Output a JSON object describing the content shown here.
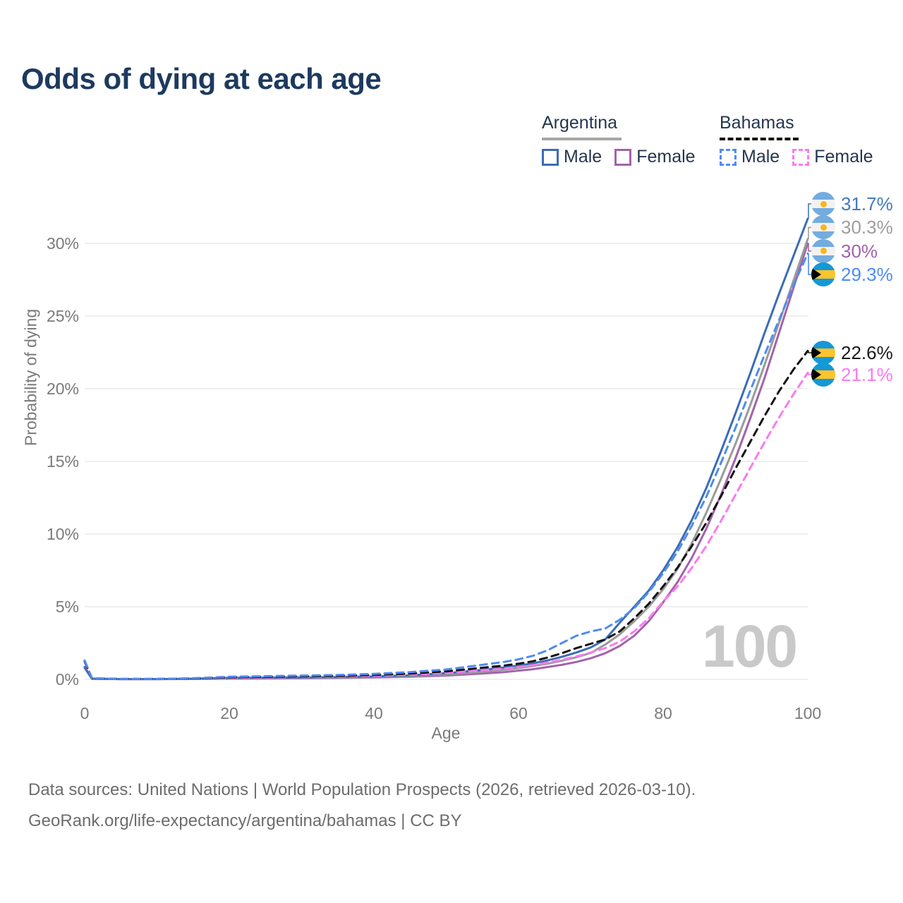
{
  "title": "Odds of dying at each age",
  "legend": {
    "groups": [
      {
        "country": "Argentina",
        "line_style": "solid",
        "line_color": "#a6a6a6",
        "items": [
          {
            "label": "Male",
            "color": "#3b6cb7",
            "style": "solid"
          },
          {
            "label": "Female",
            "color": "#a263ab",
            "style": "solid"
          }
        ]
      },
      {
        "country": "Bahamas",
        "line_style": "dashed",
        "line_color": "#141414",
        "items": [
          {
            "label": "Male",
            "color": "#4f8bf0",
            "style": "dashed"
          },
          {
            "label": "Female",
            "color": "#fb7af0",
            "style": "dashed"
          }
        ]
      }
    ]
  },
  "chart_data": {
    "type": "line",
    "title": "Odds of dying at each age",
    "xlabel": "Age",
    "ylabel": "Probability of dying",
    "xlim": [
      0,
      100
    ],
    "ylim": [
      0,
      33
    ],
    "grid": "horizontal",
    "legend_position": "top-right",
    "x_ticks": [
      0,
      20,
      40,
      60,
      80,
      100
    ],
    "y_ticks": [
      {
        "value": 0,
        "label": "0%"
      },
      {
        "value": 5,
        "label": "5%"
      },
      {
        "value": 10,
        "label": "10%"
      },
      {
        "value": 15,
        "label": "15%"
      },
      {
        "value": 20,
        "label": "20%"
      },
      {
        "value": 25,
        "label": "25%"
      },
      {
        "value": 30,
        "label": "30%"
      }
    ],
    "x": [
      0,
      1,
      5,
      10,
      15,
      20,
      25,
      30,
      35,
      40,
      45,
      50,
      55,
      58,
      60,
      62,
      64,
      66,
      68,
      70,
      72,
      74,
      76,
      78,
      80,
      82,
      84,
      86,
      88,
      90,
      92,
      94,
      96,
      98,
      100
    ],
    "series": [
      {
        "name": "argentina_female",
        "country": "Argentina",
        "sex": "Female",
        "line_style": "solid",
        "color": "#a263ab",
        "end_label": "30%",
        "values": [
          0.78,
          0.04,
          0.02,
          0.02,
          0.03,
          0.05,
          0.06,
          0.08,
          0.1,
          0.13,
          0.18,
          0.26,
          0.4,
          0.5,
          0.6,
          0.7,
          0.85,
          1.0,
          1.2,
          1.45,
          1.8,
          2.3,
          3.0,
          4.0,
          5.3,
          6.7,
          8.4,
          10.4,
          12.7,
          15.2,
          17.9,
          20.7,
          23.8,
          26.9,
          30.0
        ]
      },
      {
        "name": "argentina_both",
        "country": "Argentina",
        "sex": "Both",
        "line_style": "solid",
        "color": "#9a9a9a",
        "end_label": "30.3%",
        "values": [
          0.82,
          0.05,
          0.02,
          0.02,
          0.04,
          0.08,
          0.09,
          0.1,
          0.13,
          0.16,
          0.22,
          0.34,
          0.52,
          0.66,
          0.78,
          0.92,
          1.08,
          1.28,
          1.52,
          1.82,
          2.4,
          3.1,
          4.0,
          5.0,
          6.2,
          7.6,
          9.4,
          11.5,
          13.8,
          16.2,
          18.8,
          21.6,
          24.5,
          27.4,
          30.3
        ]
      },
      {
        "name": "argentina_male",
        "country": "Argentina",
        "sex": "Male",
        "line_style": "solid",
        "color": "#3b6cb7",
        "end_label": "31.7%",
        "values": [
          0.85,
          0.05,
          0.02,
          0.02,
          0.05,
          0.1,
          0.12,
          0.13,
          0.16,
          0.2,
          0.28,
          0.42,
          0.65,
          0.82,
          0.95,
          1.1,
          1.3,
          1.55,
          1.85,
          2.2,
          2.75,
          3.9,
          5.0,
          6.1,
          7.5,
          9.1,
          11.0,
          13.2,
          15.7,
          18.3,
          21.0,
          23.8,
          26.5,
          29.1,
          31.7
        ]
      },
      {
        "name": "bahamas_female",
        "country": "Bahamas",
        "sex": "Female",
        "line_style": "dashed",
        "color": "#fb7af0",
        "end_label": "21.1%",
        "values": [
          1.2,
          0.06,
          0.02,
          0.02,
          0.05,
          0.1,
          0.13,
          0.16,
          0.19,
          0.24,
          0.32,
          0.44,
          0.62,
          0.74,
          0.85,
          0.98,
          1.15,
          1.35,
          1.58,
          1.85,
          2.15,
          2.6,
          3.3,
          4.2,
          5.35,
          6.4,
          7.7,
          9.2,
          10.9,
          12.7,
          14.5,
          16.3,
          18.0,
          19.6,
          21.1
        ]
      },
      {
        "name": "bahamas_both",
        "country": "Bahamas",
        "sex": "Both",
        "line_style": "dashed",
        "color": "#141414",
        "end_label": "22.6%",
        "values": [
          1.25,
          0.07,
          0.03,
          0.03,
          0.06,
          0.14,
          0.17,
          0.2,
          0.24,
          0.3,
          0.4,
          0.55,
          0.8,
          0.95,
          1.08,
          1.25,
          1.5,
          1.8,
          2.15,
          2.45,
          2.75,
          3.3,
          4.2,
          5.2,
          6.4,
          7.7,
          9.2,
          10.8,
          12.6,
          14.5,
          16.3,
          18.1,
          19.8,
          21.3,
          22.6
        ]
      },
      {
        "name": "bahamas_male",
        "country": "Bahamas",
        "sex": "Male",
        "line_style": "dashed",
        "color": "#4f8bf0",
        "end_label": "29.3%",
        "values": [
          1.3,
          0.08,
          0.03,
          0.03,
          0.08,
          0.18,
          0.22,
          0.26,
          0.3,
          0.38,
          0.5,
          0.68,
          1.0,
          1.2,
          1.38,
          1.62,
          2.0,
          2.5,
          3.0,
          3.3,
          3.5,
          4.1,
          4.9,
          6.0,
          7.3,
          8.8,
          10.6,
          12.6,
          14.9,
          17.3,
          19.8,
          22.3,
          24.7,
          27.1,
          29.3
        ]
      }
    ]
  },
  "end_labels": [
    {
      "series": "argentina_male",
      "text": "31.7%",
      "flag": "argentina",
      "color": "#4379bd"
    },
    {
      "series": "argentina_both",
      "text": "30.3%",
      "flag": "argentina",
      "color": "#9e9e9e"
    },
    {
      "series": "argentina_female",
      "text": "30%",
      "flag": "argentina",
      "color": "#a263ab"
    },
    {
      "series": "bahamas_male",
      "text": "29.3%",
      "flag": "bahamas",
      "color": "#4c8bf5"
    },
    {
      "series": "bahamas_both",
      "text": "22.6%",
      "flag": "bahamas",
      "color": "#1a1a1a"
    },
    {
      "series": "bahamas_female",
      "text": "21.1%",
      "flag": "bahamas",
      "color": "#fb7af0"
    }
  ],
  "watermark": "100",
  "footer": {
    "line1": "Data sources: United Nations | World Population Prospects (2026, retrieved 2026-03-10).",
    "line2": "GeoRank.org/life-expectancy/argentina/bahamas | CC BY"
  }
}
